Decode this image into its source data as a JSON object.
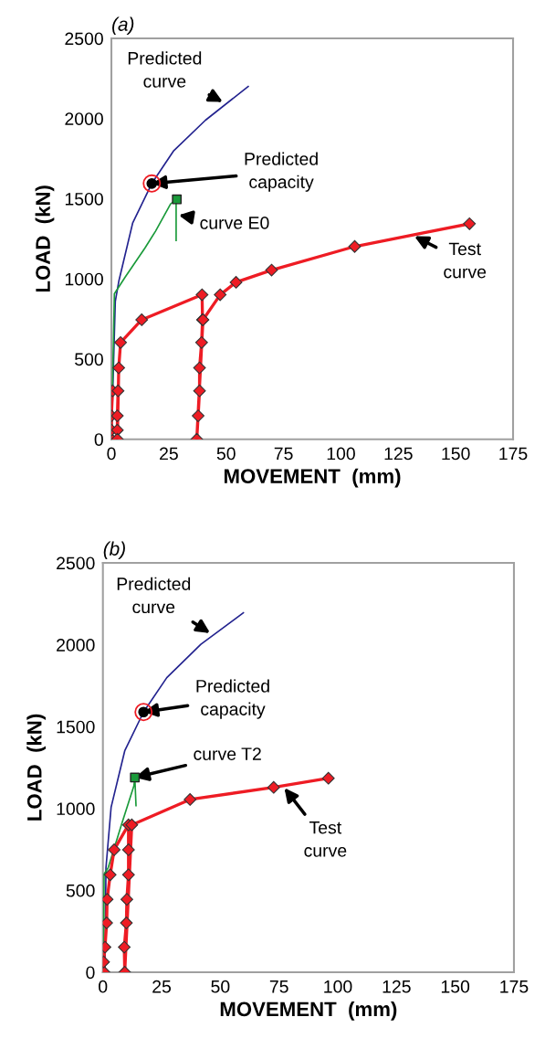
{
  "chart_data": [
    {
      "type": "line",
      "title": "(a)",
      "xlabel": "MOVEMENT  (mm)",
      "ylabel": "LOAD  (kN)",
      "xlim": [
        0,
        175
      ],
      "xticks": [
        0,
        25,
        50,
        75,
        100,
        125,
        150,
        175
      ],
      "ylim": [
        0,
        2500
      ],
      "yticks": [
        0,
        500,
        1000,
        1500,
        2000,
        2500
      ],
      "grid": false,
      "legend": false,
      "series": [
        {
          "color": "#23238f",
          "marker": "none",
          "x": [
            0,
            1.7,
            3.3,
            9.3,
            17.6,
            27.2,
            41,
            59.6
          ],
          "values": [
            0,
            860,
            990,
            1350,
            1595,
            1800,
            1990,
            2200
          ]
        },
        {
          "color": "#1a9a3a",
          "marker": "none",
          "x": [
            0,
            1.3,
            6,
            14.6,
            19.2,
            25.8,
            28.5,
            28.2,
            28.2
          ],
          "values": [
            0,
            907,
            1011,
            1192,
            1297,
            1468,
            1496,
            1468,
            1240
          ]
        },
        {
          "type": "scatter",
          "color": "#1a9a3a",
          "marker": "square",
          "x": [
            28.5
          ],
          "values": [
            1496
          ]
        },
        {
          "color": "#ee1c24",
          "marker": "diamond",
          "x": [
            0,
            0,
            0,
            0.5,
            2.9,
            2.6,
            2.6,
            2.6,
            3.2,
            4,
            13.2,
            39.5,
            39.7,
            39.3,
            38.4,
            38.4,
            37.8,
            37.2,
            39.9,
            47.4,
            54.3,
            69.8,
            106,
            156
          ],
          "values": [
            0,
            57,
            146,
            302,
            302,
            146,
            57,
            0,
            445,
            603,
            745,
            901,
            745,
            603,
            445,
            302,
            146,
            0,
            745,
            901,
            979,
            1055,
            1202,
            1344
          ]
        },
        {
          "type": "scatter",
          "color": "#000000",
          "marker": "circle",
          "x": [
            17.6
          ],
          "values": [
            1595
          ]
        }
      ],
      "annotations": [
        {
          "text": "Predicted\ncurve",
          "x": 50,
          "y": 2092
        },
        {
          "text": "Predicted\ncapacity",
          "x": 17.6,
          "y": 1595
        },
        {
          "text": "curve E0",
          "x": 28.2,
          "y": 1400
        },
        {
          "text": "Test\ncurve",
          "x": 131,
          "y": 1273
        }
      ]
    },
    {
      "type": "line",
      "title": "(b)",
      "xlabel": "MOVEMENT  (mm)",
      "ylabel": "LOAD  (kN)",
      "xlim": [
        0,
        175
      ],
      "xticks": [
        0,
        25,
        50,
        75,
        100,
        125,
        150,
        175
      ],
      "ylim": [
        0,
        2500
      ],
      "yticks": [
        0,
        500,
        1000,
        1500,
        2000,
        2500
      ],
      "grid": false,
      "legend": false,
      "series": [
        {
          "color": "#23238f",
          "marker": "none",
          "x": [
            0.9,
            1.3,
            3.5,
            9.3,
            17.3,
            27.2,
            41.7,
            59.8
          ],
          "values": [
            0,
            636,
            1008,
            1352,
            1589,
            1799,
            2003,
            2195
          ]
        },
        {
          "color": "#1a9a3a",
          "marker": "none",
          "x": [
            0.3,
            0.5,
            2.2,
            8,
            13.2,
            13.6,
            14.1
          ],
          "values": [
            0,
            600,
            636,
            906,
            1138,
            1189,
            1017
          ]
        },
        {
          "type": "scatter",
          "color": "#1a9a3a",
          "marker": "square",
          "x": [
            13.6
          ],
          "values": [
            1189
          ]
        },
        {
          "color": "#ee1c24",
          "marker": "diamond",
          "x": [
            0.5,
            0.3,
            0.9,
            1.6,
            1.8,
            3.1,
            4.8,
            10.9,
            10.9,
            10.9,
            10.2,
            10,
            9.1,
            9.3,
            12.3,
            37.1,
            72.7,
            96
          ],
          "values": [
            0,
            63,
            153,
            301,
            445,
            595,
            748,
            900,
            748,
            595,
            445,
            301,
            153,
            0,
            900,
            1055,
            1129,
            1185
          ]
        },
        {
          "type": "scatter",
          "color": "#000000",
          "marker": "circle",
          "x": [
            17.3
          ],
          "values": [
            1589
          ]
        }
      ],
      "annotations": [
        {
          "text": "Predicted\ncurve",
          "x": 47,
          "y": 2059
        },
        {
          "text": "Predicted\ncapacity",
          "x": 17.3,
          "y": 1589
        },
        {
          "text": "curve T2",
          "x": 13.6,
          "y": 1189
        },
        {
          "text": "Test\ncurve",
          "x": 76.6,
          "y": 1138
        }
      ]
    }
  ]
}
